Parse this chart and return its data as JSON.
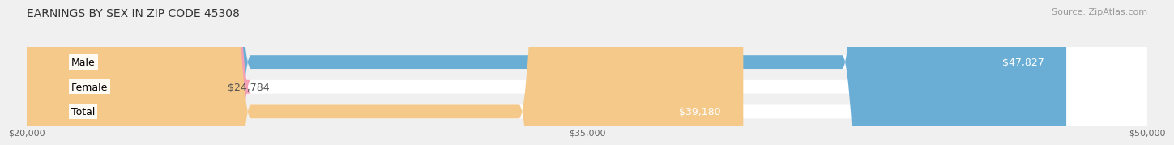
{
  "title": "EARNINGS BY SEX IN ZIP CODE 45308",
  "source": "Source: ZipAtlas.com",
  "categories": [
    "Male",
    "Female",
    "Total"
  ],
  "values": [
    47827,
    24784,
    39180
  ],
  "x_min": 20000,
  "x_max": 50000,
  "x_ticks": [
    20000,
    35000,
    50000
  ],
  "x_tick_labels": [
    "$20,000",
    "$35,000",
    "$50,000"
  ],
  "bar_colors": [
    "#6aaed6",
    "#f4a0b5",
    "#f5c98a"
  ],
  "label_values": [
    "$47,827",
    "$24,784",
    "$39,180"
  ],
  "bar_height": 0.55,
  "background_color": "#f0f0f0",
  "title_fontsize": 10,
  "source_fontsize": 8,
  "label_fontsize": 9,
  "axis_fontsize": 8
}
